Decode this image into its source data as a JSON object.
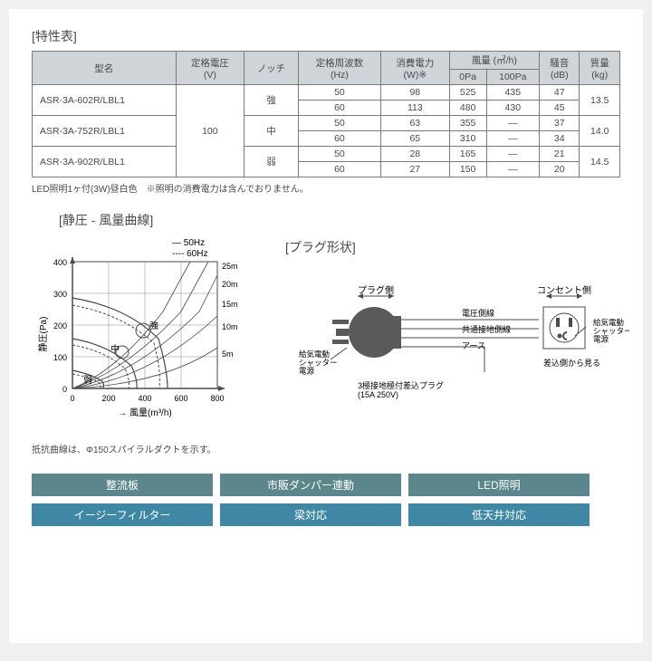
{
  "title1": "[特性表]",
  "headers": {
    "model": "型名",
    "volt": "定格電圧\n(V)",
    "notch": "ノッチ",
    "freq": "定格周波数\n(Hz)",
    "power": "消費電力\n(W)※",
    "airflow": "風量 (㎥/h)",
    "air0": "0Pa",
    "air100": "100Pa",
    "noise": "騒音\n(dB)",
    "mass": "質量\n(kg)"
  },
  "voltValue": "100",
  "models": [
    "ASR-3A-602R/LBL1",
    "ASR-3A-752R/LBL1",
    "ASR-3A-902R/LBL1"
  ],
  "notches": [
    "強",
    "中",
    "弱"
  ],
  "rows": [
    {
      "f": "50",
      "p": "98",
      "a0": "525",
      "a1": "435",
      "n": "47"
    },
    {
      "f": "60",
      "p": "113",
      "a0": "480",
      "a1": "430",
      "n": "45"
    },
    {
      "f": "50",
      "p": "63",
      "a0": "355",
      "a1": "—",
      "n": "37"
    },
    {
      "f": "60",
      "p": "65",
      "a0": "310",
      "a1": "—",
      "n": "34"
    },
    {
      "f": "50",
      "p": "28",
      "a0": "165",
      "a1": "—",
      "n": "21"
    },
    {
      "f": "60",
      "p": "27",
      "a0": "150",
      "a1": "—",
      "n": "20"
    }
  ],
  "masses": [
    "13.5",
    "14.0",
    "14.5"
  ],
  "tableNote": "LED照明1ヶ付(3W)昼白色　※照明の消費電力は含んでおりません。",
  "chartTitle": "[静圧 - 風量曲線]",
  "chart": {
    "legend50": "— 50Hz",
    "legend60": "---- 60Hz",
    "ylabel": "静圧(Pa)",
    "xlabel": "風量(m³/h)",
    "yticks": [
      "0",
      "100",
      "200",
      "300",
      "400"
    ],
    "xticks": [
      "0",
      "200",
      "400",
      "600",
      "800"
    ],
    "duct": [
      "25m",
      "20m",
      "15m",
      "10m",
      "5m"
    ],
    "labels": {
      "high": "強",
      "mid": "中",
      "low": "弱"
    }
  },
  "chartNote": "抵抗曲線は、Φ150スパイラルダクトを示す。",
  "plugTitle": "[プラグ形状]",
  "plug": {
    "plugSide": "プラグ側",
    "outletSide": "コンセント側",
    "voltLine": "電圧側線",
    "groundLine": "共通接地側線",
    "earth": "アース",
    "shutterPower": "給気電動\nシャッター\n電源",
    "plugName": "3極接地極付差込プラグ\n(15A 250V)",
    "viewFrom": "差込側から見る"
  },
  "tags": [
    {
      "text": "整流板",
      "cls": "tag-a"
    },
    {
      "text": "市販ダンパー連動",
      "cls": "tag-a"
    },
    {
      "text": "LED照明",
      "cls": "tag-a"
    },
    {
      "text": "イージーフィルター",
      "cls": "tag-b"
    },
    {
      "text": "梁対応",
      "cls": "tag-b"
    },
    {
      "text": "低天井対応",
      "cls": "tag-b"
    }
  ],
  "colors": {
    "border": "#7a7a7a",
    "headerBg": "#cfd4d8",
    "text": "#4a4a4a",
    "tagA": "#5a868c",
    "tagB": "#3e88a6"
  }
}
